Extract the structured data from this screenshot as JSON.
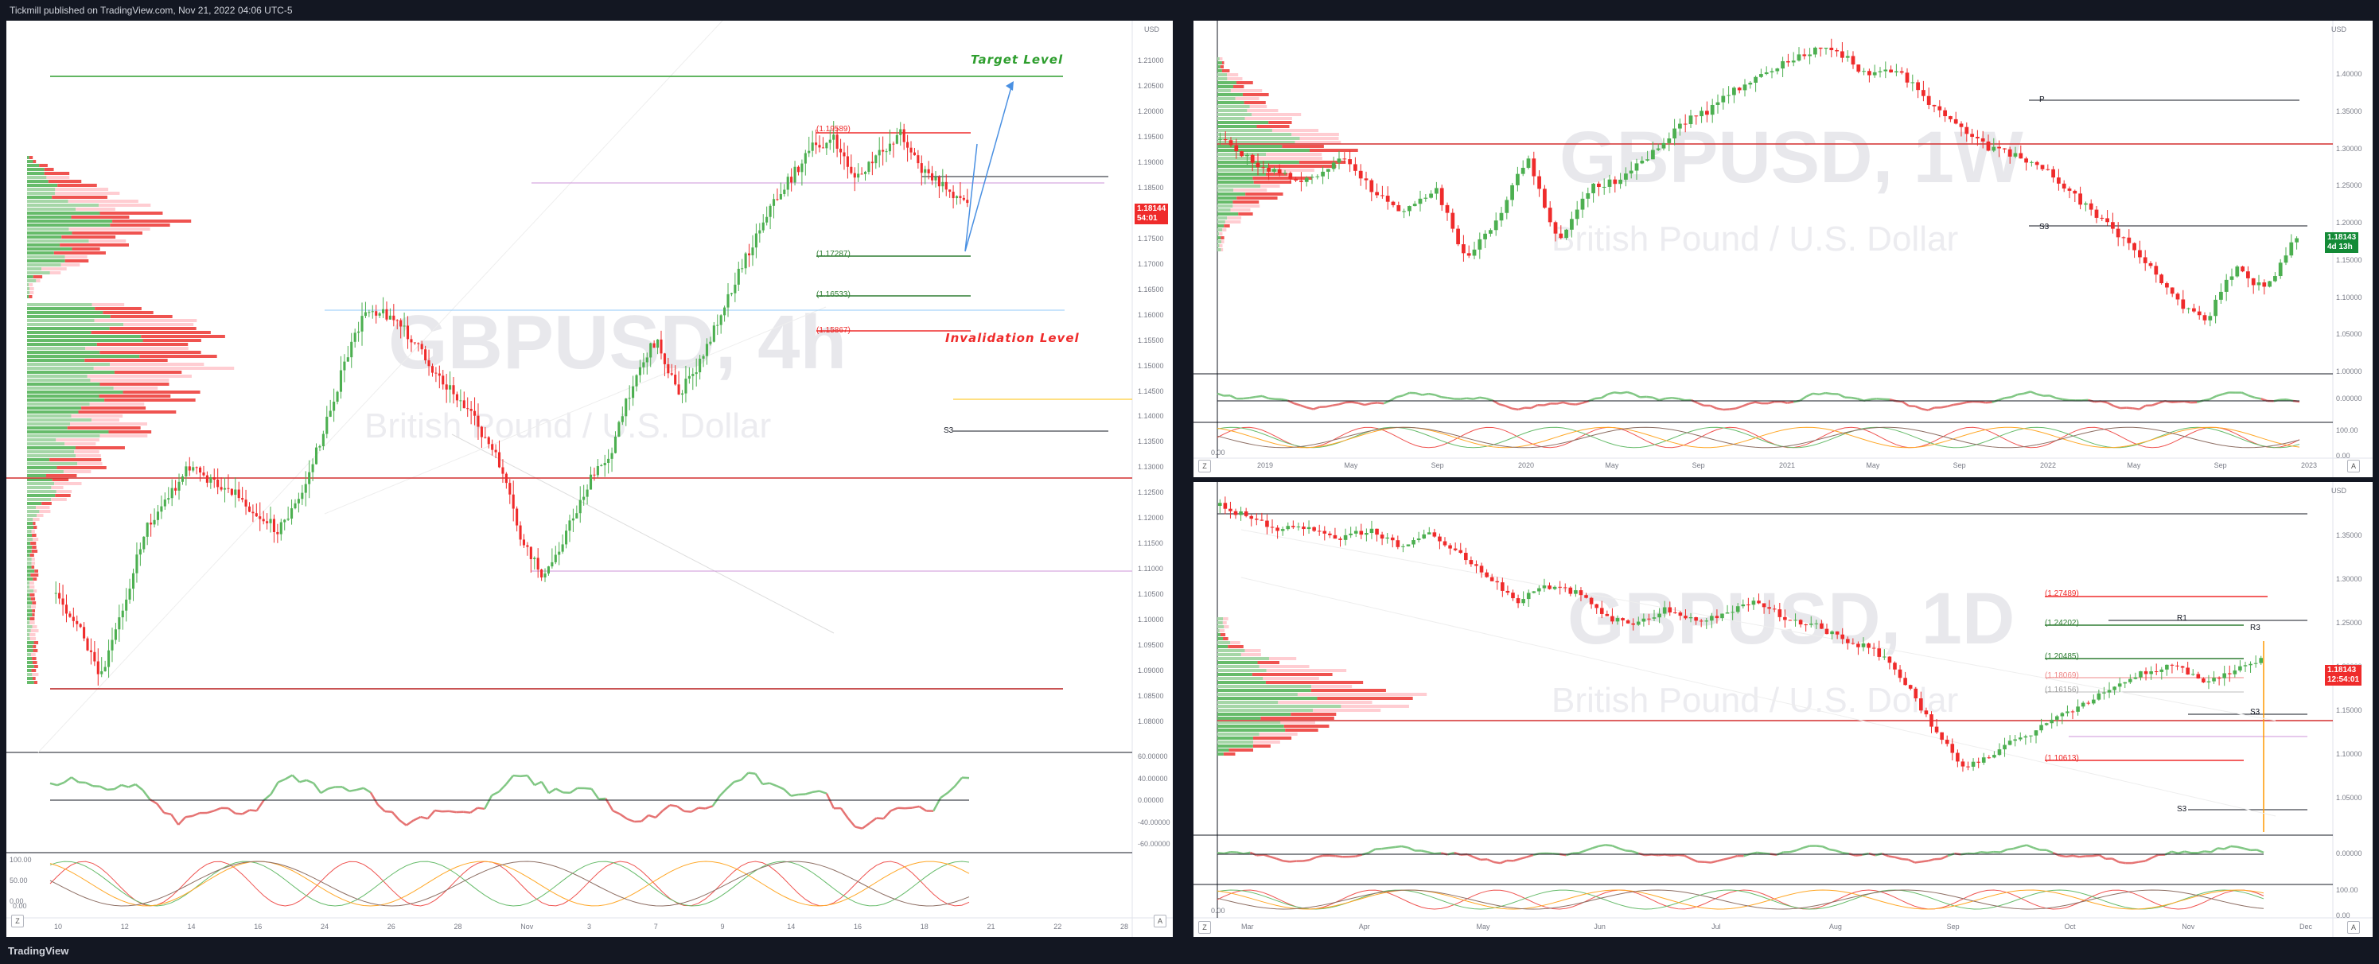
{
  "header": {
    "title": "Tickmill published on TradingView.com, Nov 21, 2022 04:06 UTC-5"
  },
  "footer": {
    "logo": "TradingView"
  },
  "colors": {
    "up": "#4caf50",
    "down": "#ef2b2b",
    "bg": "#131722",
    "panel": "#ffffff"
  },
  "charts": {
    "left": {
      "symbol": "GBPUSD, 4h",
      "name": "British Pound / U.S. Dollar",
      "currency": "USD",
      "price": "1.18144",
      "countdown": "54:01",
      "yticks": [
        "1.21000",
        "1.20500",
        "1.20000",
        "1.19500",
        "1.19000",
        "1.18500",
        "1.18000",
        "1.17500",
        "1.17000",
        "1.16500",
        "1.16000",
        "1.15500",
        "1.15000",
        "1.14500",
        "1.14000",
        "1.13500",
        "1.13000",
        "1.12500",
        "1.12000",
        "1.11500",
        "1.11000",
        "1.10500",
        "1.10000",
        "1.09500",
        "1.09000",
        "1.08500",
        "1.08000"
      ],
      "osc1_ticks": [
        "60.00000",
        "40.00000",
        "0.00000",
        "-40.00000",
        "-60.00000"
      ],
      "osc2_ticks": [
        "100.00",
        "50.00",
        "0.00"
      ],
      "xticks": [
        "10",
        "12",
        "14",
        "16",
        "24",
        "26",
        "28",
        "Nov",
        "3",
        "7",
        "9",
        "14",
        "16",
        "18",
        "21",
        "22",
        "28"
      ],
      "levels": {
        "l1": "(1.19589)",
        "l2": "(1.17287)",
        "l3": "(1.16533)",
        "l4": "(1.15867)",
        "target": "Target Level",
        "invalidation": "Invalidation Level",
        "s3": "S3"
      }
    },
    "weekly": {
      "symbol": "GBPUSD, 1W",
      "name": "British Pound / U.S. Dollar",
      "currency": "USD",
      "price": "1.18143",
      "countdown": "4d 13h",
      "yticks": [
        "1.40000",
        "1.35000",
        "1.30000",
        "1.25000",
        "1.20000",
        "1.15000",
        "1.10000",
        "1.05000",
        "1.00000"
      ],
      "osc1_ticks": [
        "0.00000"
      ],
      "osc2_ticks": [
        "100.00",
        "0.00"
      ],
      "xticks": [
        "2019",
        "May",
        "Sep",
        "2020",
        "May",
        "Sep",
        "2021",
        "May",
        "Sep",
        "2022",
        "May",
        "Sep",
        "2023"
      ],
      "levels": {
        "p": "P",
        "s3": "S3"
      }
    },
    "daily": {
      "symbol": "GBPUSD, 1D",
      "name": "British Pound / U.S. Dollar",
      "currency": "USD",
      "price": "1.18143",
      "countdown": "12:54:01",
      "yticks": [
        "1.35000",
        "1.30000",
        "1.25000",
        "1.20000",
        "1.15000",
        "1.10000",
        "1.05000"
      ],
      "osc1_ticks": [
        "0.00000"
      ],
      "osc2_ticks": [
        "100.00",
        "0.00"
      ],
      "xticks": [
        "Mar",
        "Apr",
        "May",
        "Jun",
        "Jul",
        "Aug",
        "Sep",
        "Oct",
        "Nov",
        "Dec"
      ],
      "levels": {
        "l1": "(1.27489)",
        "l2": "(1.24202)",
        "l3": "(1.20485)",
        "l4": "(1.18069)",
        "l5": "(1.16156)",
        "l6": "(1.10613)",
        "r1": "R1",
        "r3": "R3",
        "s3a": "S3",
        "s3b": "S3"
      }
    }
  },
  "corner_z": "Z",
  "corner_a": "A",
  "osc_zero_label": "0.00"
}
